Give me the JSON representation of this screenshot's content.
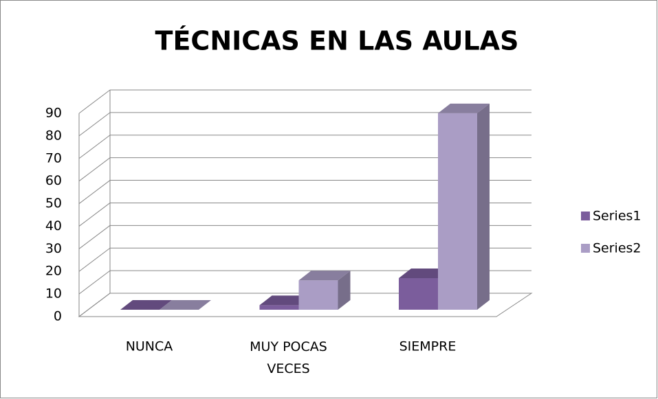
{
  "chart_data": {
    "type": "bar3d",
    "title": "TÉCNICAS EN LAS AULAS",
    "categories": [
      "NUNCA",
      "MUY POCAS VECES",
      "SIEMPRE"
    ],
    "series": [
      {
        "name": "Series1",
        "color": "#7b5d9c",
        "values": [
          0,
          2,
          14
        ]
      },
      {
        "name": "Series2",
        "color": "#aa9dc5",
        "values": [
          0,
          13,
          87
        ]
      }
    ],
    "ylim": [
      0,
      90
    ],
    "yticks": [
      0,
      10,
      20,
      30,
      40,
      50,
      60,
      70,
      80,
      90
    ],
    "grid": true,
    "legend": "right"
  }
}
